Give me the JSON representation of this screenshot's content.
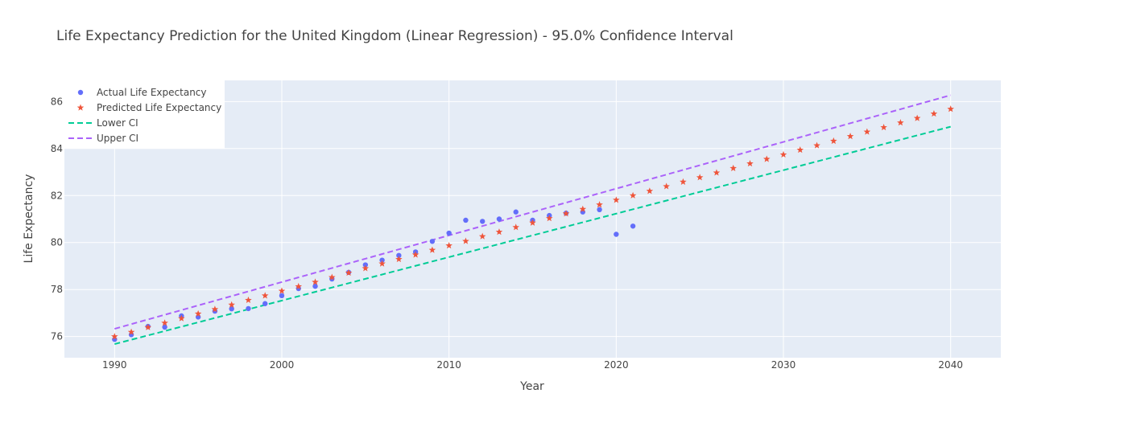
{
  "chart_data": {
    "type": "scatter",
    "title": "Life Expectancy Prediction for the United Kingdom (Linear Regression) - 95.0% Confidence Interval",
    "xlabel": "Year",
    "ylabel": "Life Expectancy",
    "xlim": [
      1987,
      2043
    ],
    "ylim": [
      75.1,
      86.9
    ],
    "xticks": [
      1990,
      2000,
      2010,
      2020,
      2030,
      2040
    ],
    "yticks": [
      76,
      78,
      80,
      82,
      84,
      86
    ],
    "grid": true,
    "legend_position": "top-left",
    "colors": {
      "plot_bg": "#e5ecf6",
      "actual": "#636efa",
      "predicted": "#ef553b",
      "lower": "#00cc96",
      "upper": "#ab63fa"
    },
    "series": [
      {
        "name": "Actual Life Expectancy",
        "mode": "markers",
        "marker": "circle",
        "x": [
          1990,
          1991,
          1992,
          1993,
          1994,
          1995,
          1996,
          1997,
          1998,
          1999,
          2000,
          2001,
          2002,
          2003,
          2004,
          2005,
          2006,
          2007,
          2008,
          2009,
          2010,
          2011,
          2012,
          2013,
          2014,
          2015,
          2016,
          2017,
          2018,
          2019,
          2020,
          2021
        ],
        "y": [
          75.88,
          76.08,
          76.43,
          76.4,
          76.88,
          76.83,
          77.08,
          77.18,
          77.19,
          77.4,
          77.74,
          78.04,
          78.14,
          78.45,
          78.73,
          79.05,
          79.25,
          79.45,
          79.6,
          80.05,
          80.4,
          80.95,
          80.9,
          81.0,
          81.3,
          80.95,
          81.15,
          81.25,
          81.3,
          81.4,
          80.35,
          80.7
        ]
      },
      {
        "name": "Predicted Life Expectancy",
        "mode": "markers",
        "marker": "star",
        "x": [
          1990,
          1991,
          1992,
          1993,
          1994,
          1995,
          1996,
          1997,
          1998,
          1999,
          2000,
          2001,
          2002,
          2003,
          2004,
          2005,
          2006,
          2007,
          2008,
          2009,
          2010,
          2011,
          2012,
          2013,
          2014,
          2015,
          2016,
          2017,
          2018,
          2019,
          2020,
          2021,
          2022,
          2023,
          2024,
          2025,
          2026,
          2027,
          2028,
          2029,
          2030,
          2031,
          2032,
          2033,
          2034,
          2035,
          2036,
          2037,
          2038,
          2039,
          2040
        ],
        "y": [
          76.0,
          76.19,
          76.39,
          76.58,
          76.77,
          76.97,
          77.16,
          77.35,
          77.55,
          77.74,
          77.94,
          78.13,
          78.32,
          78.52,
          78.71,
          78.9,
          79.1,
          79.29,
          79.48,
          79.68,
          79.87,
          80.06,
          80.26,
          80.45,
          80.65,
          80.84,
          81.03,
          81.23,
          81.42,
          81.61,
          81.81,
          82.0,
          82.19,
          82.39,
          82.58,
          82.77,
          82.97,
          83.16,
          83.36,
          83.55,
          83.74,
          83.94,
          84.13,
          84.32,
          84.52,
          84.71,
          84.9,
          85.1,
          85.29,
          85.48,
          85.68
        ]
      },
      {
        "name": "Lower CI",
        "mode": "lines",
        "dash": "dash",
        "x": [
          1990,
          2040
        ],
        "y": [
          75.68,
          84.93
        ]
      },
      {
        "name": "Upper CI",
        "mode": "lines",
        "dash": "dash",
        "x": [
          1990,
          2040
        ],
        "y": [
          76.33,
          86.27
        ]
      }
    ]
  }
}
